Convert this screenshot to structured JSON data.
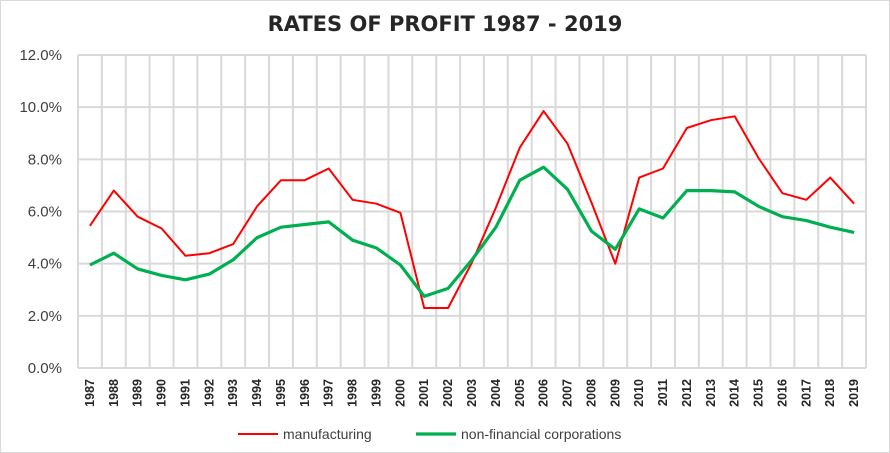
{
  "chart_data": {
    "type": "line",
    "title": "RATES OF PROFIT 1987 - 2019",
    "xlabel": "",
    "ylabel": "",
    "ylim": [
      0,
      12
    ],
    "yticks": [
      0,
      2,
      4,
      6,
      8,
      10,
      12
    ],
    "ytick_labels": [
      "0.0%",
      "2.0%",
      "4.0%",
      "6.0%",
      "8.0%",
      "10.0%",
      "12.0%"
    ],
    "grid": true,
    "legend_position": "bottom",
    "x": [
      "1987",
      "1988",
      "1989",
      "1990",
      "1991",
      "1992",
      "1993",
      "1994",
      "1995",
      "1996",
      "1997",
      "1998",
      "1999",
      "2000",
      "2001",
      "2002",
      "2003",
      "2004",
      "2005",
      "2006",
      "2007",
      "2008",
      "2009",
      "2010",
      "2011",
      "2012",
      "2013",
      "2014",
      "2015",
      "2016",
      "2017",
      "2018",
      "2019"
    ],
    "series": [
      {
        "name": "manufacturing",
        "color": "#ff0000",
        "values": [
          5.45,
          6.8,
          5.8,
          5.35,
          4.3,
          4.4,
          4.75,
          6.2,
          7.2,
          7.2,
          7.65,
          6.45,
          6.3,
          5.95,
          2.3,
          2.3,
          4.05,
          6.15,
          8.45,
          9.85,
          8.6,
          6.35,
          4.0,
          7.3,
          7.65,
          9.2,
          9.5,
          9.65,
          8.05,
          6.7,
          6.45,
          7.3,
          6.3
        ]
      },
      {
        "name": "non-financial corporations",
        "color": "#00b050",
        "values": [
          3.95,
          4.4,
          3.8,
          3.55,
          3.38,
          3.6,
          4.15,
          5.0,
          5.4,
          5.5,
          5.6,
          4.9,
          4.6,
          3.95,
          2.75,
          3.05,
          4.15,
          5.4,
          7.2,
          7.7,
          6.85,
          5.25,
          4.55,
          6.1,
          5.75,
          6.8,
          6.8,
          6.75,
          6.2,
          5.8,
          5.65,
          5.4,
          5.2
        ]
      }
    ]
  }
}
